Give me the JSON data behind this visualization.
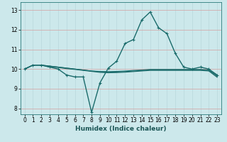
{
  "xlabel": "Humidex (Indice chaleur)",
  "background_color": "#cce8eb",
  "grid_major_color": "#e8c8c8",
  "grid_minor_color": "#b8dce0",
  "line_color": "#1a6b6b",
  "xlim": [
    -0.5,
    23.5
  ],
  "ylim": [
    7.7,
    13.4
  ],
  "yticks": [
    8,
    9,
    10,
    11,
    12,
    13
  ],
  "xticks": [
    0,
    1,
    2,
    3,
    4,
    5,
    6,
    7,
    8,
    9,
    10,
    11,
    12,
    13,
    14,
    15,
    16,
    17,
    18,
    19,
    20,
    21,
    22,
    23
  ],
  "lines": [
    {
      "x": [
        0,
        1,
        2,
        3,
        4,
        5,
        6,
        7,
        8,
        9,
        10,
        11,
        12,
        13,
        14,
        15,
        16,
        17,
        18,
        19,
        20,
        21,
        22,
        23
      ],
      "y": [
        10.0,
        10.2,
        10.2,
        10.1,
        10.0,
        9.7,
        9.6,
        9.6,
        7.8,
        9.3,
        10.05,
        10.4,
        11.3,
        11.5,
        12.5,
        12.9,
        12.1,
        11.8,
        10.8,
        10.1,
        10.0,
        10.1,
        10.0,
        9.7
      ],
      "marker": "+",
      "lw": 1.0
    },
    {
      "x": [
        0,
        1,
        2,
        3,
        4,
        5,
        6,
        7,
        8,
        9,
        10,
        11,
        12,
        13,
        14,
        15,
        16,
        17,
        18,
        19,
        20,
        21,
        22,
        23
      ],
      "y": [
        10.0,
        10.2,
        10.2,
        10.15,
        10.1,
        10.05,
        10.0,
        9.95,
        9.9,
        9.88,
        9.87,
        9.88,
        9.9,
        9.93,
        9.95,
        9.98,
        9.98,
        9.98,
        9.98,
        9.98,
        9.98,
        9.98,
        9.95,
        9.68
      ],
      "marker": null,
      "lw": 0.8
    },
    {
      "x": [
        0,
        1,
        2,
        3,
        4,
        5,
        6,
        7,
        8,
        9,
        10,
        11,
        12,
        13,
        14,
        15,
        16,
        17,
        18,
        19,
        20,
        21,
        22,
        23
      ],
      "y": [
        10.0,
        10.2,
        10.2,
        10.15,
        10.1,
        10.05,
        10.0,
        9.95,
        9.9,
        9.86,
        9.84,
        9.85,
        9.87,
        9.9,
        9.93,
        9.96,
        9.96,
        9.96,
        9.96,
        9.96,
        9.96,
        9.96,
        9.93,
        9.63
      ],
      "marker": null,
      "lw": 0.8
    },
    {
      "x": [
        0,
        1,
        2,
        3,
        4,
        5,
        6,
        7,
        8,
        9,
        10,
        11,
        12,
        13,
        14,
        15,
        16,
        17,
        18,
        19,
        20,
        21,
        22,
        23
      ],
      "y": [
        10.0,
        10.2,
        10.2,
        10.1,
        10.08,
        10.02,
        9.98,
        9.93,
        9.88,
        9.83,
        9.81,
        9.82,
        9.84,
        9.87,
        9.9,
        9.93,
        9.93,
        9.93,
        9.93,
        9.93,
        9.93,
        9.93,
        9.9,
        9.58
      ],
      "marker": null,
      "lw": 0.8
    }
  ]
}
